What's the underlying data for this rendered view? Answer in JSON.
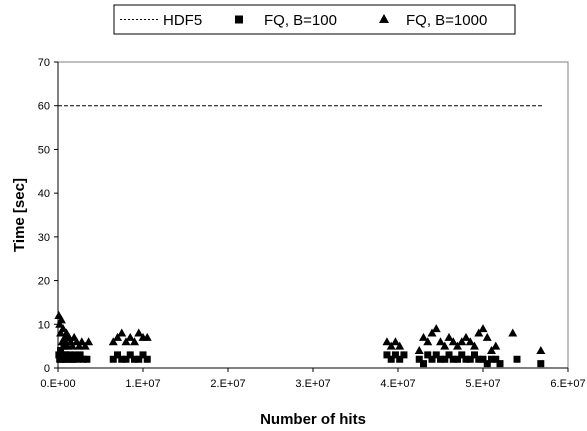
{
  "chart_data": {
    "type": "scatter",
    "title": "",
    "xlabel": "Number of hits",
    "ylabel": "Time [sec]",
    "xlim": [
      0,
      60000000
    ],
    "ylim": [
      0,
      70
    ],
    "x_tick_labels": [
      "0.E+00",
      "1.E+07",
      "2.E+07",
      "3.E+07",
      "4.E+07",
      "5.E+07",
      "6.E+07"
    ],
    "y_tick_labels": [
      "0",
      "10",
      "20",
      "30",
      "40",
      "50",
      "60",
      "70"
    ],
    "grid": false,
    "legend_position": "top",
    "series": [
      {
        "name": "HDF5",
        "style": "dashed-line",
        "color": "#000000",
        "x": [
          0,
          57000000
        ],
        "y": [
          60,
          60
        ]
      },
      {
        "name": "FQ, B=100",
        "style": "square",
        "color": "#000000",
        "x": [
          100000,
          200000,
          300000,
          400000,
          500000,
          600000,
          700000,
          800000,
          900000,
          1000000,
          1200000,
          1400000,
          1600000,
          1800000,
          2000000,
          2300000,
          2600000,
          3000000,
          3400000,
          6500000,
          7000000,
          7500000,
          8000000,
          8500000,
          9000000,
          9500000,
          10000000,
          10500000,
          38700000,
          39200000,
          39700000,
          40200000,
          40700000,
          42500000,
          43000000,
          43500000,
          44000000,
          44500000,
          45000000,
          45500000,
          46000000,
          46500000,
          47000000,
          47500000,
          48000000,
          48500000,
          49000000,
          49500000,
          50000000,
          50500000,
          51000000,
          51500000,
          52000000,
          54000000,
          56800000
        ],
        "y": [
          3,
          2,
          4,
          2,
          3,
          2,
          5,
          3,
          2,
          3,
          2,
          3,
          2,
          2,
          3,
          2,
          3,
          2,
          2,
          2,
          3,
          2,
          2,
          3,
          2,
          2,
          3,
          2,
          3,
          2,
          3,
          2,
          3,
          2,
          1,
          3,
          2,
          3,
          2,
          2,
          3,
          2,
          2,
          3,
          2,
          2,
          3,
          2,
          2,
          1,
          2,
          2,
          1,
          2,
          1
        ]
      },
      {
        "name": "FQ, B=1000",
        "style": "triangle",
        "color": "#000000",
        "x": [
          100000,
          200000,
          300000,
          400000,
          500000,
          600000,
          700000,
          800000,
          900000,
          1000000,
          1100000,
          1300000,
          1500000,
          1700000,
          1900000,
          2200000,
          2500000,
          2800000,
          3200000,
          3600000,
          6500000,
          7000000,
          7500000,
          8000000,
          8500000,
          9000000,
          9500000,
          10000000,
          10500000,
          38700000,
          39200000,
          39700000,
          40200000,
          42500000,
          43000000,
          43500000,
          44000000,
          44500000,
          45000000,
          45500000,
          46000000,
          46500000,
          47000000,
          47500000,
          48000000,
          48500000,
          49000000,
          49500000,
          50000000,
          50500000,
          51000000,
          51500000,
          53500000,
          56800000
        ],
        "y": [
          12,
          10,
          8,
          11,
          6,
          9,
          5,
          7,
          6,
          8,
          5,
          7,
          6,
          5,
          7,
          6,
          5,
          6,
          5,
          6,
          6,
          7,
          8,
          6,
          7,
          6,
          8,
          7,
          7,
          6,
          5,
          6,
          5,
          4,
          7,
          6,
          8,
          9,
          6,
          5,
          7,
          6,
          5,
          6,
          7,
          6,
          5,
          8,
          9,
          7,
          4,
          5,
          8,
          4
        ]
      }
    ]
  }
}
